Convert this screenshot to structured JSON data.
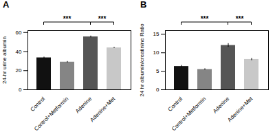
{
  "chart_data": [
    {
      "type": "bar",
      "title": "A",
      "ylabel": "24-hr urine albumin",
      "categories": [
        "Control",
        "Control+Metformin",
        "Adenine",
        "Adenine+Met"
      ],
      "values": [
        33.5,
        29.0,
        55.5,
        44.0
      ],
      "errors": [
        0.8,
        0.7,
        0.9,
        0.6
      ],
      "colors": [
        "#111111",
        "#858585",
        "#555555",
        "#c8c8c8"
      ],
      "ylim": [
        0,
        62
      ],
      "yticks": [
        0,
        20,
        40,
        60
      ],
      "annotations": [
        {
          "text": "***",
          "from": "Control",
          "to": "Adenine"
        },
        {
          "text": "***",
          "from": "Adenine",
          "to": "Adenine+Met"
        }
      ]
    },
    {
      "type": "bar",
      "title": "B",
      "ylabel": "24 hr albumin/creatinine Ratio",
      "categories": [
        "Control",
        "Control+Metformin",
        "Adenine",
        "Adenine+Met"
      ],
      "values": [
        6.3,
        5.5,
        12.0,
        8.2
      ],
      "errors": [
        0.3,
        0.2,
        0.5,
        0.3
      ],
      "colors": [
        "#111111",
        "#858585",
        "#555555",
        "#c8c8c8"
      ],
      "ylim": [
        0,
        16
      ],
      "yticks": [
        0,
        5,
        10,
        15
      ],
      "annotations": [
        {
          "text": "***",
          "from": "Control",
          "to": "Adenine"
        },
        {
          "text": "***",
          "from": "Adenine",
          "to": "Adenine+Met"
        }
      ]
    }
  ]
}
